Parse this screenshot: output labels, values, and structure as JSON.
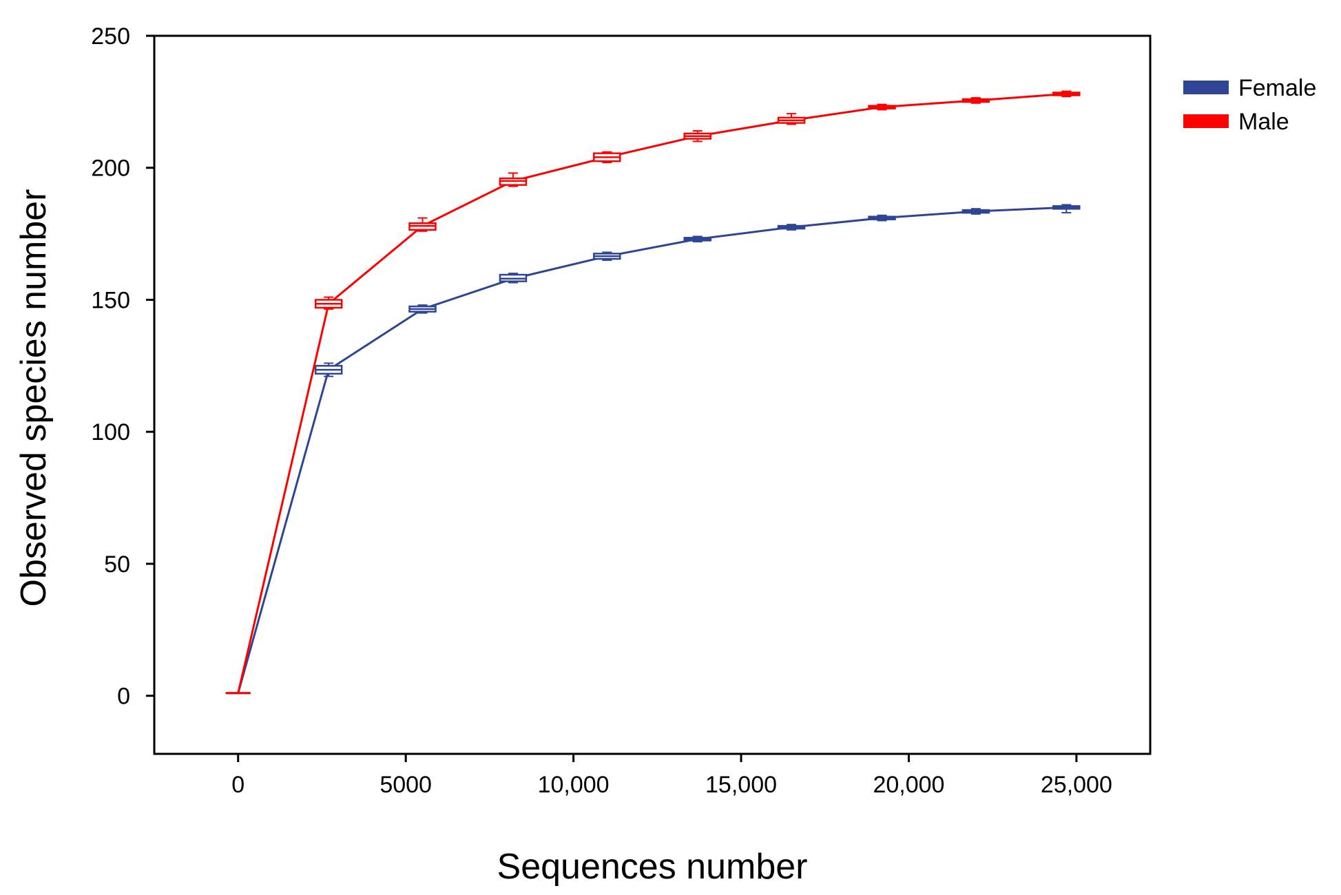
{
  "chart_data": {
    "type": "line",
    "title": "",
    "xlabel": "Sequences number",
    "ylabel": "Observed species number",
    "xlim": [
      -2500,
      27200
    ],
    "ylim": [
      -22,
      250
    ],
    "xticks": [
      0,
      5000,
      10000,
      15000,
      20000,
      25000
    ],
    "xtick_labels": [
      "0",
      "5000",
      "10,000",
      "15,000",
      "20,000",
      "25,000"
    ],
    "yticks": [
      0,
      50,
      100,
      150,
      200,
      250
    ],
    "ytick_labels": [
      "0",
      "50",
      "100",
      "150",
      "200",
      "250"
    ],
    "grid": false,
    "legend_position": "top-right",
    "series": [
      {
        "name": "Female",
        "color": "#2e4596",
        "x": [
          0,
          2700,
          5500,
          8200,
          11000,
          13700,
          16500,
          19200,
          22000,
          24700
        ],
        "y": [
          1,
          123.5,
          146.5,
          158,
          166.5,
          173,
          177.5,
          181,
          183.5,
          185
        ],
        "box_low": [
          1,
          122,
          145.5,
          157,
          165.5,
          172.5,
          177,
          180.5,
          183,
          184.5
        ],
        "box_high": [
          1,
          125,
          147.5,
          159.5,
          167.5,
          173.5,
          178,
          181.5,
          184,
          185.5
        ],
        "whisker_low": [
          1,
          121,
          145,
          156.5,
          165,
          172,
          176.5,
          180,
          182.5,
          183
        ],
        "whisker_high": [
          1,
          126,
          148,
          160,
          168,
          174,
          178.5,
          182,
          184.5,
          186
        ]
      },
      {
        "name": "Male",
        "color": "#ff0000",
        "x": [
          0,
          2700,
          5500,
          8200,
          11000,
          13700,
          16500,
          19200,
          22000,
          24700
        ],
        "y": [
          1,
          148.5,
          178,
          195,
          204,
          212,
          218,
          223,
          225.5,
          228
        ],
        "box_low": [
          1,
          147,
          176.5,
          193.5,
          202.5,
          211,
          217,
          222.5,
          225,
          227.5
        ],
        "box_high": [
          1,
          150,
          179,
          196,
          205.5,
          213,
          219,
          223.5,
          226,
          228.5
        ],
        "whisker_low": [
          1,
          146.5,
          176,
          193,
          202,
          210,
          216.5,
          222,
          224.5,
          227
        ],
        "whisker_high": [
          1,
          151,
          181,
          198,
          206,
          214,
          220.5,
          224,
          226.5,
          229
        ]
      }
    ]
  }
}
